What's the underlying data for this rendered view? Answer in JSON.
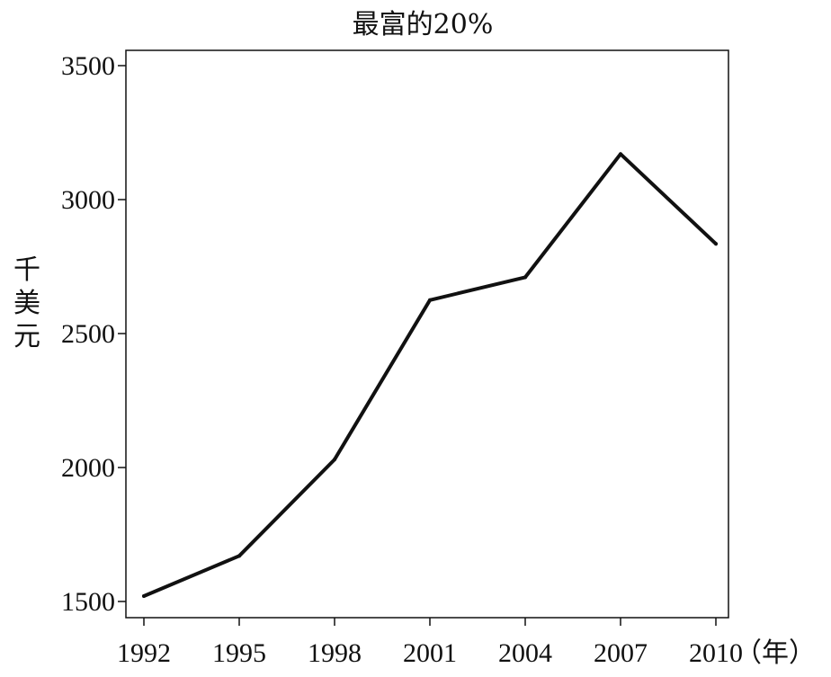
{
  "chart_data": {
    "type": "line",
    "title": "最富的20%",
    "ylabel": "千美元",
    "xlabel": "",
    "x_unit_label": "（年）",
    "xlim": [
      1992,
      2010
    ],
    "ylim": [
      1500,
      3500
    ],
    "x_ticks": [
      "1992",
      "1995",
      "1998",
      "2001",
      "2004",
      "2007",
      "2010"
    ],
    "y_ticks": [
      "1500",
      "2000",
      "2500",
      "3000",
      "3500"
    ],
    "grid": false,
    "series": [
      {
        "x": [
          1992,
          1995,
          1998,
          2001,
          2004,
          2007,
          2010
        ],
        "y": [
          1520,
          1670,
          2030,
          2625,
          2710,
          3170,
          2835
        ],
        "color": "#111111"
      }
    ]
  }
}
